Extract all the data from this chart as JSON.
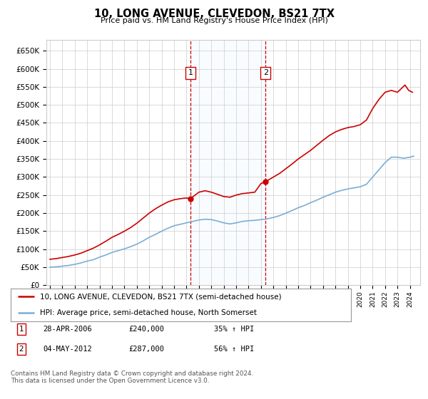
{
  "title": "10, LONG AVENUE, CLEVEDON, BS21 7TX",
  "subtitle": "Price paid vs. HM Land Registry's House Price Index (HPI)",
  "ylim": [
    0,
    680000
  ],
  "yticks": [
    0,
    50000,
    100000,
    150000,
    200000,
    250000,
    300000,
    350000,
    400000,
    450000,
    500000,
    550000,
    600000,
    650000
  ],
  "xlim_start": 1994.7,
  "xlim_end": 2024.8,
  "line1_color": "#cc0000",
  "line2_color": "#7aaed6",
  "shade_color": "#ddeeff",
  "transaction1_x": 2006.32,
  "transaction1_y": 240000,
  "transaction2_x": 2012.37,
  "transaction2_y": 287000,
  "vline_color": "#cc0000",
  "marker_color": "#cc0000",
  "box_color": "#cc0000",
  "legend_label1": "10, LONG AVENUE, CLEVEDON, BS21 7TX (semi-detached house)",
  "legend_label2": "HPI: Average price, semi-detached house, North Somerset",
  "table_row1": [
    "1",
    "28-APR-2006",
    "£240,000",
    "35% ↑ HPI"
  ],
  "table_row2": [
    "2",
    "04-MAY-2012",
    "£287,000",
    "56% ↑ HPI"
  ],
  "footer": "Contains HM Land Registry data © Crown copyright and database right 2024.\nThis data is licensed under the Open Government Licence v3.0.",
  "background_color": "#ffffff",
  "grid_color": "#cccccc",
  "years_hpi": [
    1995,
    1995.5,
    1996,
    1996.5,
    1997,
    1997.5,
    1998,
    1998.5,
    1999,
    1999.5,
    2000,
    2000.5,
    2001,
    2001.5,
    2002,
    2002.5,
    2003,
    2003.5,
    2004,
    2004.5,
    2005,
    2005.5,
    2006,
    2006.5,
    2007,
    2007.5,
    2008,
    2008.5,
    2009,
    2009.5,
    2010,
    2010.5,
    2011,
    2011.5,
    2012,
    2012.5,
    2013,
    2013.5,
    2014,
    2014.5,
    2015,
    2015.5,
    2016,
    2016.5,
    2017,
    2017.5,
    2018,
    2018.5,
    2019,
    2019.5,
    2020,
    2020.5,
    2021,
    2021.5,
    2022,
    2022.5,
    2023,
    2023.5,
    2024,
    2024.3
  ],
  "hpi_values": [
    50000,
    51000,
    53000,
    55000,
    58000,
    62000,
    67000,
    71000,
    78000,
    84000,
    91000,
    96000,
    101000,
    107000,
    114000,
    123000,
    133000,
    141000,
    150000,
    158000,
    165000,
    169000,
    173000,
    177000,
    181000,
    183000,
    182000,
    178000,
    173000,
    170000,
    173000,
    177000,
    179000,
    180000,
    182000,
    184000,
    188000,
    193000,
    200000,
    207000,
    215000,
    221000,
    229000,
    236000,
    244000,
    251000,
    258000,
    263000,
    267000,
    270000,
    273000,
    280000,
    300000,
    320000,
    340000,
    355000,
    355000,
    352000,
    355000,
    358000
  ],
  "prop_years": [
    1995,
    1995.5,
    1996,
    1996.5,
    1997,
    1997.5,
    1998,
    1998.5,
    1999,
    1999.5,
    2000,
    2000.5,
    2001,
    2001.5,
    2002,
    2002.5,
    2003,
    2003.5,
    2004,
    2004.5,
    2005,
    2005.5,
    2006.0,
    2006.32,
    2007.0,
    2007.5,
    2008.0,
    2008.5,
    2009.0,
    2009.5,
    2010.0,
    2010.5,
    2011.0,
    2011.5,
    2012.0,
    2012.37,
    2013.0,
    2013.5,
    2014.0,
    2014.5,
    2015.0,
    2015.5,
    2016.0,
    2016.5,
    2017.0,
    2017.5,
    2018.0,
    2018.5,
    2019.0,
    2019.5,
    2020.0,
    2020.5,
    2021.0,
    2021.5,
    2022.0,
    2022.5,
    2023.0,
    2023.3,
    2023.6,
    2023.9,
    2024.2
  ],
  "prop_values": [
    72000,
    74000,
    77000,
    80000,
    84000,
    89000,
    96000,
    103000,
    112000,
    122000,
    133000,
    141000,
    150000,
    160000,
    172000,
    186000,
    200000,
    212000,
    222000,
    231000,
    237000,
    240000,
    242000,
    240000,
    258000,
    262000,
    258000,
    252000,
    246000,
    244000,
    250000,
    254000,
    256000,
    258000,
    282000,
    287000,
    300000,
    310000,
    323000,
    336000,
    350000,
    362000,
    374000,
    388000,
    402000,
    415000,
    425000,
    432000,
    437000,
    440000,
    445000,
    458000,
    490000,
    515000,
    535000,
    540000,
    535000,
    545000,
    555000,
    540000,
    535000
  ]
}
